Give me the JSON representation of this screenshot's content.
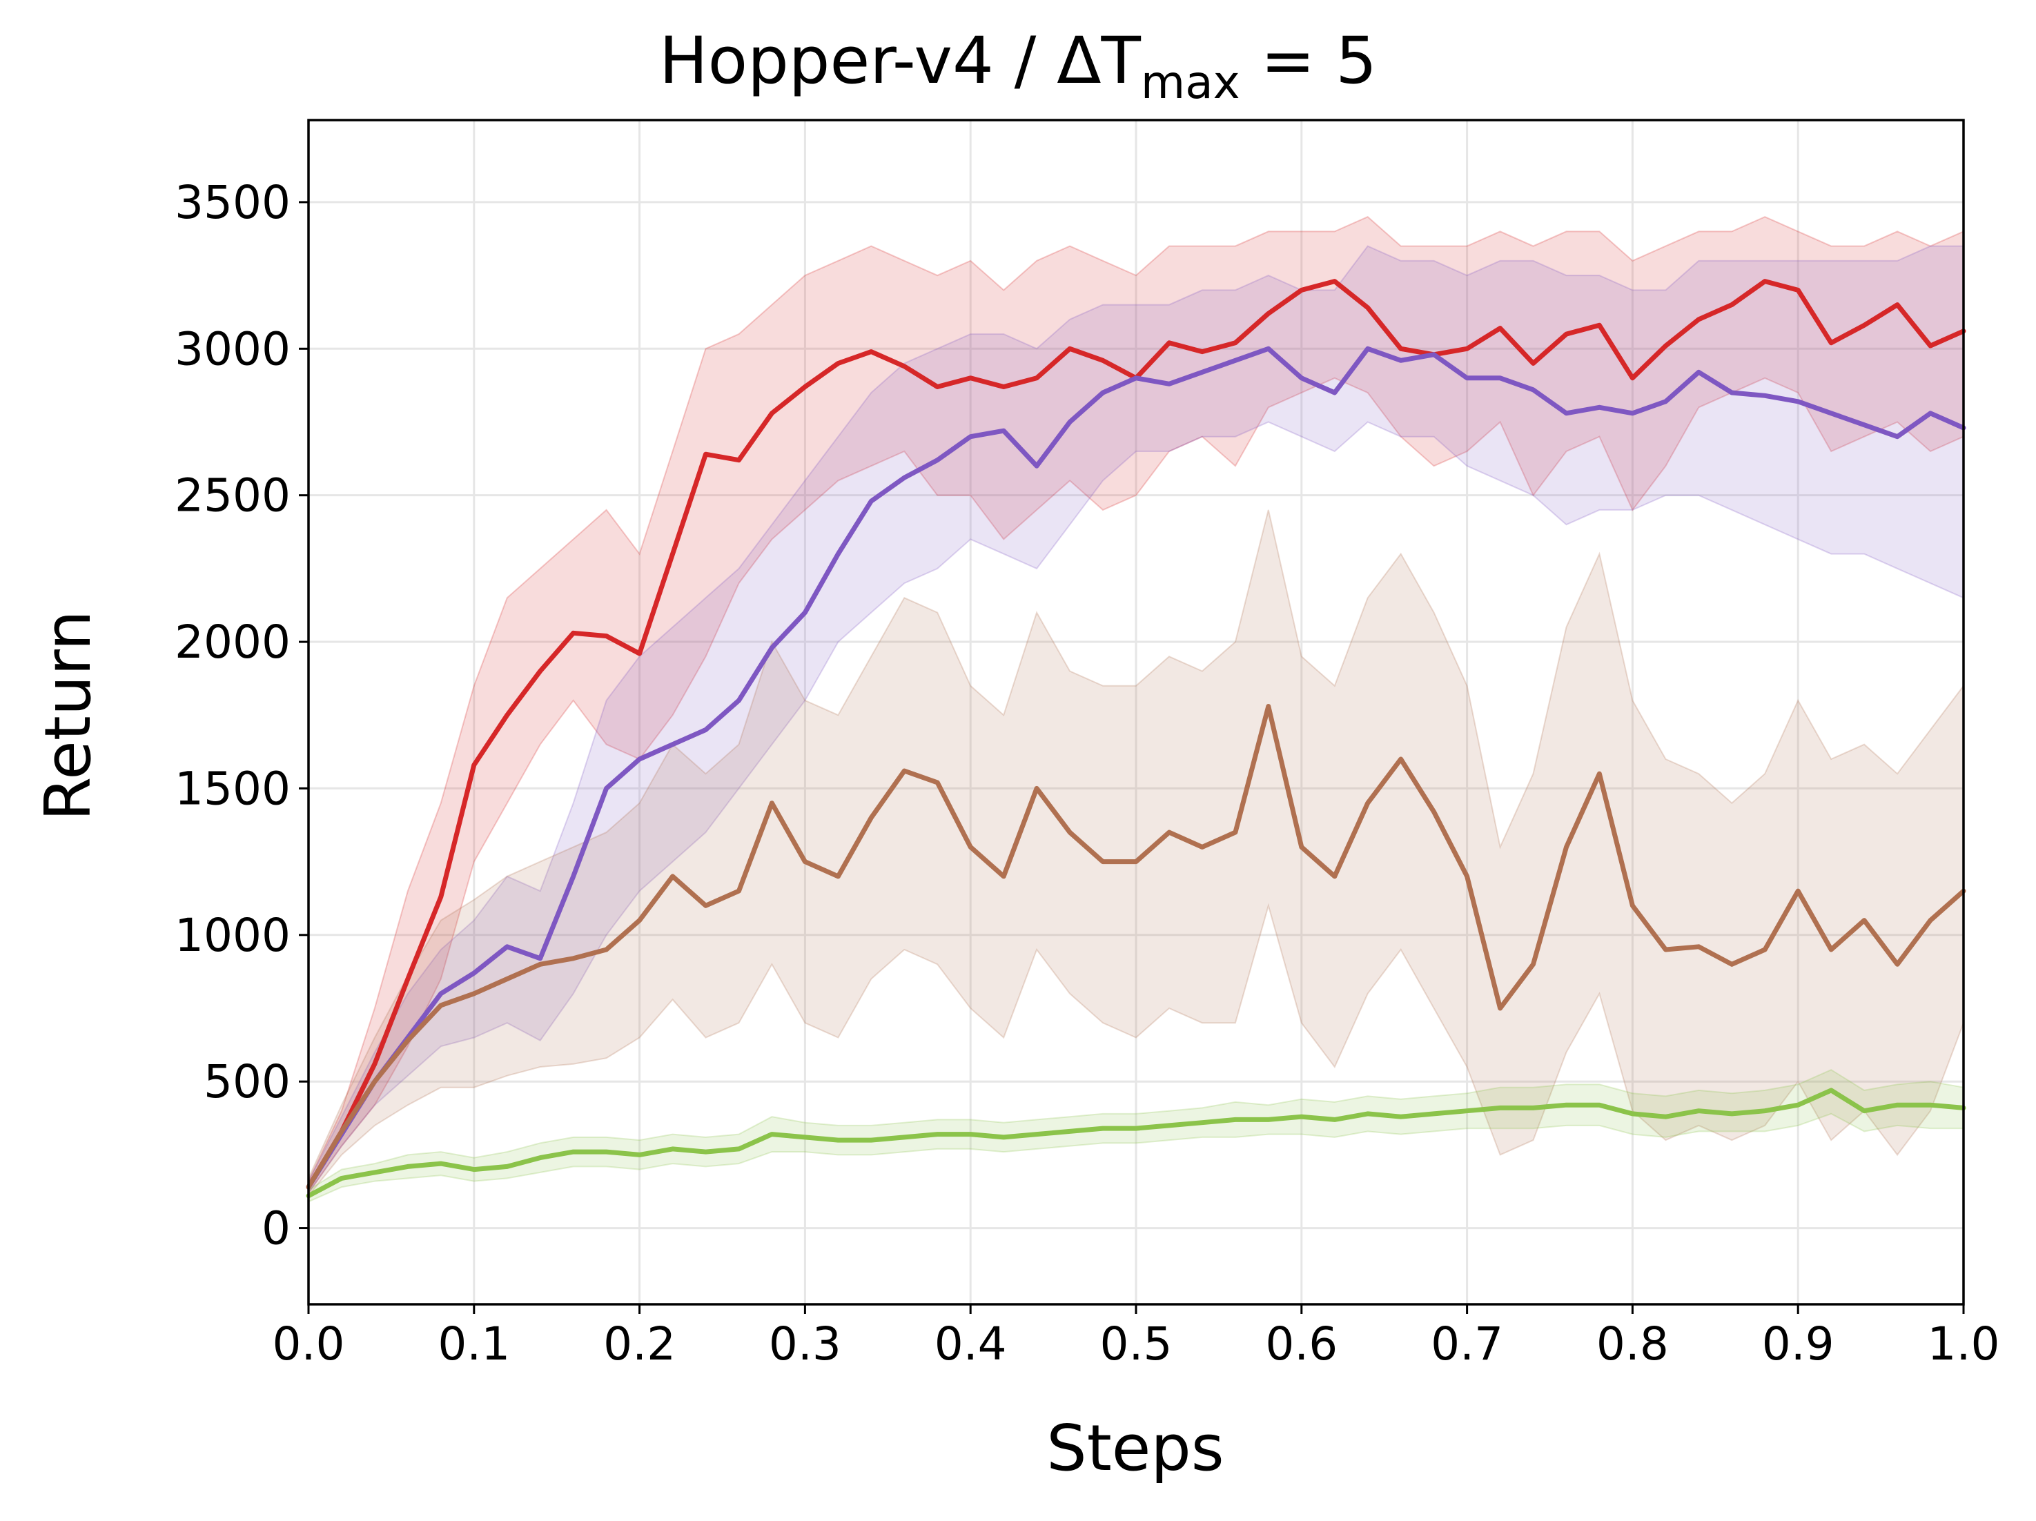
{
  "chart_data": {
    "type": "line",
    "title_main": "Hopper-v4 / ΔT",
    "title_sub": "max",
    "title_tail": " = 5",
    "xlabel": "Steps",
    "ylabel": "Return",
    "xlim": [
      0,
      1
    ],
    "ylim": [
      -260,
      3780
    ],
    "xticks": [
      0.0,
      0.1,
      0.2,
      0.3,
      0.4,
      0.5,
      0.6,
      0.7,
      0.8,
      0.9,
      1.0
    ],
    "xtick_labels": [
      "0.0",
      "0.1",
      "0.2",
      "0.3",
      "0.4",
      "0.5",
      "0.6",
      "0.7",
      "0.8",
      "0.9",
      "1.0"
    ],
    "yticks": [
      0,
      500,
      1000,
      1500,
      2000,
      2500,
      3000,
      3500
    ],
    "ytick_labels": [
      "0",
      "500",
      "1000",
      "1500",
      "2000",
      "2500",
      "3000",
      "3500"
    ],
    "grid": true,
    "series": [
      {
        "color": "#d62728",
        "x": [
          0,
          0.02,
          0.04,
          0.06,
          0.08,
          0.1,
          0.12,
          0.14,
          0.16,
          0.18,
          0.2,
          0.22,
          0.24,
          0.26,
          0.28,
          0.3,
          0.32,
          0.34,
          0.36,
          0.38,
          0.4,
          0.42,
          0.44,
          0.46,
          0.48,
          0.5,
          0.52,
          0.54,
          0.56,
          0.58,
          0.6,
          0.62,
          0.64,
          0.66,
          0.68,
          0.7,
          0.72,
          0.74,
          0.76,
          0.78,
          0.8,
          0.82,
          0.84,
          0.86,
          0.88,
          0.9,
          0.92,
          0.94,
          0.96,
          0.98,
          1.0
        ],
        "y": [
          140,
          330,
          560,
          850,
          1130,
          1580,
          1750,
          1900,
          2030,
          2020,
          1960,
          2300,
          2640,
          2620,
          2780,
          2870,
          2950,
          2990,
          2940,
          2870,
          2900,
          2870,
          2900,
          3000,
          2960,
          2900,
          3020,
          2990,
          3020,
          3120,
          3200,
          3230,
          3140,
          3000,
          2980,
          3000,
          3070,
          2950,
          3050,
          3080,
          2900,
          3010,
          3100,
          3150,
          3230,
          3200,
          3020,
          3080,
          3150,
          3010,
          3060
        ],
        "lower": [
          120,
          280,
          420,
          620,
          850,
          1250,
          1450,
          1650,
          1800,
          1650,
          1600,
          1750,
          1950,
          2200,
          2350,
          2450,
          2550,
          2600,
          2650,
          2500,
          2500,
          2350,
          2450,
          2550,
          2450,
          2500,
          2650,
          2700,
          2600,
          2800,
          2850,
          2900,
          2850,
          2700,
          2600,
          2650,
          2750,
          2500,
          2650,
          2700,
          2450,
          2600,
          2800,
          2850,
          2900,
          2850,
          2650,
          2700,
          2750,
          2650,
          2700
        ],
        "upper": [
          160,
          400,
          750,
          1150,
          1450,
          1850,
          2150,
          2250,
          2350,
          2450,
          2300,
          2650,
          3000,
          3050,
          3150,
          3250,
          3300,
          3350,
          3300,
          3250,
          3300,
          3200,
          3300,
          3350,
          3300,
          3250,
          3350,
          3350,
          3350,
          3400,
          3400,
          3400,
          3450,
          3350,
          3350,
          3350,
          3400,
          3350,
          3400,
          3400,
          3300,
          3350,
          3400,
          3400,
          3450,
          3400,
          3350,
          3350,
          3400,
          3350,
          3400
        ]
      },
      {
        "color": "#7e57c2",
        "x": [
          0,
          0.02,
          0.04,
          0.06,
          0.08,
          0.1,
          0.12,
          0.14,
          0.16,
          0.18,
          0.2,
          0.22,
          0.24,
          0.26,
          0.28,
          0.3,
          0.32,
          0.34,
          0.36,
          0.38,
          0.4,
          0.42,
          0.44,
          0.46,
          0.48,
          0.5,
          0.52,
          0.54,
          0.56,
          0.58,
          0.6,
          0.62,
          0.64,
          0.66,
          0.68,
          0.7,
          0.72,
          0.74,
          0.76,
          0.78,
          0.8,
          0.82,
          0.84,
          0.86,
          0.88,
          0.9,
          0.92,
          0.94,
          0.96,
          0.98,
          1.0
        ],
        "y": [
          140,
          320,
          500,
          650,
          800,
          870,
          960,
          920,
          1200,
          1500,
          1600,
          1650,
          1700,
          1800,
          1980,
          2100,
          2300,
          2480,
          2560,
          2620,
          2700,
          2720,
          2600,
          2750,
          2850,
          2900,
          2880,
          2920,
          2960,
          3000,
          2900,
          2850,
          3000,
          2960,
          2980,
          2900,
          2900,
          2860,
          2780,
          2800,
          2780,
          2820,
          2920,
          2850,
          2840,
          2820,
          2780,
          2740,
          2700,
          2780,
          2730
        ],
        "lower": [
          120,
          280,
          420,
          520,
          620,
          650,
          700,
          640,
          800,
          1000,
          1150,
          1250,
          1350,
          1500,
          1650,
          1800,
          2000,
          2100,
          2200,
          2250,
          2350,
          2300,
          2250,
          2400,
          2550,
          2650,
          2650,
          2700,
          2700,
          2750,
          2700,
          2650,
          2750,
          2700,
          2700,
          2600,
          2550,
          2500,
          2400,
          2450,
          2450,
          2500,
          2500,
          2450,
          2400,
          2350,
          2300,
          2300,
          2250,
          2200,
          2150
        ],
        "upper": [
          160,
          380,
          600,
          800,
          950,
          1050,
          1200,
          1150,
          1450,
          1800,
          1950,
          2050,
          2150,
          2250,
          2400,
          2550,
          2700,
          2850,
          2950,
          3000,
          3050,
          3050,
          3000,
          3100,
          3150,
          3150,
          3150,
          3200,
          3200,
          3250,
          3200,
          3200,
          3350,
          3300,
          3300,
          3250,
          3300,
          3300,
          3250,
          3250,
          3200,
          3200,
          3300,
          3300,
          3300,
          3300,
          3300,
          3300,
          3300,
          3350,
          3350
        ]
      },
      {
        "color": "#b07050",
        "x": [
          0,
          0.02,
          0.04,
          0.06,
          0.08,
          0.1,
          0.12,
          0.14,
          0.16,
          0.18,
          0.2,
          0.22,
          0.24,
          0.26,
          0.28,
          0.3,
          0.32,
          0.34,
          0.36,
          0.38,
          0.4,
          0.42,
          0.44,
          0.46,
          0.48,
          0.5,
          0.52,
          0.54,
          0.56,
          0.58,
          0.6,
          0.62,
          0.64,
          0.66,
          0.68,
          0.7,
          0.72,
          0.74,
          0.76,
          0.78,
          0.8,
          0.82,
          0.84,
          0.86,
          0.88,
          0.9,
          0.92,
          0.94,
          0.96,
          0.98,
          1.0
        ],
        "y": [
          140,
          330,
          500,
          640,
          760,
          800,
          850,
          900,
          920,
          950,
          1050,
          1200,
          1100,
          1150,
          1450,
          1250,
          1200,
          1400,
          1560,
          1520,
          1300,
          1200,
          1500,
          1350,
          1250,
          1250,
          1350,
          1300,
          1350,
          1780,
          1300,
          1200,
          1450,
          1600,
          1420,
          1200,
          750,
          900,
          1300,
          1550,
          1100,
          950,
          960,
          900,
          950,
          1150,
          950,
          1050,
          900,
          1050,
          1150
        ],
        "lower": [
          110,
          250,
          350,
          420,
          480,
          480,
          520,
          550,
          560,
          580,
          650,
          780,
          650,
          700,
          900,
          700,
          650,
          850,
          950,
          900,
          750,
          650,
          950,
          800,
          700,
          650,
          750,
          700,
          700,
          1100,
          700,
          550,
          800,
          950,
          750,
          550,
          250,
          300,
          600,
          800,
          400,
          300,
          350,
          300,
          350,
          500,
          300,
          400,
          250,
          400,
          700
        ],
        "upper": [
          170,
          420,
          650,
          860,
          1050,
          1120,
          1200,
          1250,
          1300,
          1350,
          1450,
          1650,
          1550,
          1650,
          2000,
          1800,
          1750,
          1950,
          2150,
          2100,
          1850,
          1750,
          2100,
          1900,
          1850,
          1850,
          1950,
          1900,
          2000,
          2450,
          1950,
          1850,
          2150,
          2300,
          2100,
          1850,
          1300,
          1550,
          2050,
          2300,
          1800,
          1600,
          1550,
          1450,
          1550,
          1800,
          1600,
          1650,
          1550,
          1700,
          1850
        ]
      },
      {
        "color": "#8bc34a",
        "x": [
          0,
          0.02,
          0.04,
          0.06,
          0.08,
          0.1,
          0.12,
          0.14,
          0.16,
          0.18,
          0.2,
          0.22,
          0.24,
          0.26,
          0.28,
          0.3,
          0.32,
          0.34,
          0.36,
          0.38,
          0.4,
          0.42,
          0.44,
          0.46,
          0.48,
          0.5,
          0.52,
          0.54,
          0.56,
          0.58,
          0.6,
          0.62,
          0.64,
          0.66,
          0.68,
          0.7,
          0.72,
          0.74,
          0.76,
          0.78,
          0.8,
          0.82,
          0.84,
          0.86,
          0.88,
          0.9,
          0.92,
          0.94,
          0.96,
          0.98,
          1.0
        ],
        "y": [
          110,
          170,
          190,
          210,
          220,
          200,
          210,
          240,
          260,
          260,
          250,
          270,
          260,
          270,
          320,
          310,
          300,
          300,
          310,
          320,
          320,
          310,
          320,
          330,
          340,
          340,
          350,
          360,
          370,
          370,
          380,
          370,
          390,
          380,
          390,
          400,
          410,
          410,
          420,
          420,
          390,
          380,
          400,
          390,
          400,
          420,
          470,
          400,
          420,
          420,
          410
        ],
        "lower": [
          90,
          140,
          160,
          170,
          180,
          160,
          170,
          190,
          210,
          210,
          200,
          220,
          210,
          220,
          260,
          260,
          250,
          250,
          260,
          270,
          270,
          260,
          270,
          280,
          290,
          290,
          300,
          310,
          310,
          320,
          320,
          310,
          330,
          320,
          330,
          340,
          340,
          340,
          350,
          350,
          320,
          310,
          330,
          330,
          330,
          350,
          390,
          330,
          350,
          340,
          340
        ],
        "upper": [
          130,
          200,
          220,
          250,
          260,
          240,
          260,
          290,
          310,
          310,
          300,
          320,
          310,
          320,
          380,
          360,
          350,
          350,
          360,
          370,
          370,
          360,
          370,
          380,
          390,
          390,
          400,
          410,
          430,
          420,
          440,
          430,
          450,
          440,
          450,
          460,
          480,
          480,
          490,
          490,
          460,
          450,
          470,
          460,
          470,
          490,
          540,
          470,
          490,
          500,
          480
        ]
      }
    ]
  }
}
